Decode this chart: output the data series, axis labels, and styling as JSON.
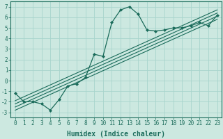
{
  "title": "",
  "xlabel": "Humidex (Indice chaleur)",
  "ylabel": "",
  "bg_color": "#cce8e0",
  "grid_color": "#a8d4cc",
  "line_color": "#1a6b5a",
  "marker_color": "#1a6b5a",
  "xlim": [
    -0.5,
    23.5
  ],
  "ylim": [
    -3.5,
    7.5
  ],
  "xticks": [
    0,
    1,
    2,
    3,
    4,
    5,
    6,
    7,
    8,
    9,
    10,
    11,
    12,
    13,
    14,
    15,
    16,
    17,
    18,
    19,
    20,
    21,
    22,
    23
  ],
  "yticks": [
    -3,
    -2,
    -1,
    0,
    1,
    2,
    3,
    4,
    5,
    6,
    7
  ],
  "main_x": [
    0,
    1,
    2,
    3,
    4,
    5,
    6,
    7,
    8,
    9,
    10,
    11,
    12,
    13,
    14,
    15,
    16,
    17,
    18,
    19,
    20,
    21,
    22,
    23
  ],
  "main_y": [
    -1.2,
    -2.0,
    -2.0,
    -2.2,
    -2.8,
    -1.8,
    -0.5,
    -0.3,
    0.3,
    2.5,
    2.3,
    5.5,
    6.7,
    7.0,
    6.3,
    4.8,
    4.7,
    4.8,
    5.0,
    5.0,
    5.2,
    5.5,
    5.2,
    6.2
  ],
  "line1_x": [
    0,
    23
  ],
  "line1_y": [
    -2.8,
    5.8
  ],
  "line2_x": [
    0,
    23
  ],
  "line2_y": [
    -2.5,
    6.1
  ],
  "line3_x": [
    0,
    23
  ],
  "line3_y": [
    -2.2,
    6.4
  ],
  "line4_x": [
    0,
    23
  ],
  "line4_y": [
    -1.9,
    6.7
  ],
  "font_family": "monospace",
  "tick_fontsize": 5.5,
  "label_fontsize": 7.0
}
